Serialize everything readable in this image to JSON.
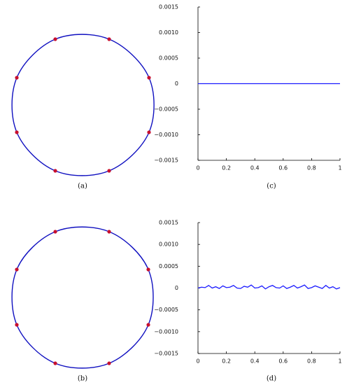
{
  "chart_data": [
    {
      "type": "curve",
      "caption": "(a)",
      "x": [
        0.38,
        0.95,
        0.95,
        0.38,
        -0.39,
        -0.94,
        -0.94,
        -0.39
      ],
      "y": [
        0.94,
        0.39,
        -0.39,
        -0.94,
        -0.94,
        -0.39,
        0.39,
        0.94
      ],
      "line_color": "#1010c0",
      "point_color": "#c8102e"
    },
    {
      "type": "curve",
      "caption": "(b)",
      "x": [
        0.38,
        0.94,
        0.94,
        0.38,
        -0.39,
        -0.94,
        -0.94,
        -0.39
      ],
      "y": [
        0.94,
        0.4,
        -0.39,
        -0.94,
        -0.94,
        -0.39,
        0.4,
        0.94
      ],
      "line_color": "#1010c0",
      "point_color": "#c8102e"
    },
    {
      "type": "line",
      "caption": "(c)",
      "x": [
        0,
        0.025,
        0.05,
        0.075,
        0.1,
        0.125,
        0.15,
        0.175,
        0.2,
        0.225,
        0.25,
        0.275,
        0.3,
        0.325,
        0.35,
        0.375,
        0.4,
        0.425,
        0.45,
        0.475,
        0.5,
        0.525,
        0.55,
        0.575,
        0.6,
        0.625,
        0.65,
        0.675,
        0.7,
        0.725,
        0.75,
        0.775,
        0.8,
        0.825,
        0.85,
        0.875,
        0.9,
        0.925,
        0.95,
        0.975,
        1
      ],
      "values": [
        0,
        0,
        0,
        0,
        0,
        0,
        0,
        0,
        0,
        0,
        0,
        0,
        0,
        0,
        0,
        0,
        0,
        0,
        0,
        0,
        0,
        0,
        0,
        0,
        0,
        0,
        0,
        0,
        0,
        0,
        0,
        0,
        0,
        0,
        0,
        0,
        0,
        0,
        0,
        0,
        0
      ],
      "color": "#1a1aff",
      "xlim": [
        0,
        1
      ],
      "xticks": [
        0,
        0.2,
        0.4,
        0.6,
        0.8,
        1
      ],
      "ylim": [
        -0.0015,
        0.0015
      ],
      "yticks": [
        {
          "value": -0.0015,
          "label": "−0.0015"
        },
        {
          "value": -0.001,
          "label": "−0.0010"
        },
        {
          "value": -0.0005,
          "label": "−0.0005"
        },
        0,
        0.0005,
        {
          "value": 0.001,
          "label": "0.0010"
        },
        0.0015
      ]
    },
    {
      "type": "line",
      "caption": "(d)",
      "x": [
        0,
        0.025,
        0.05,
        0.075,
        0.1,
        0.125,
        0.15,
        0.175,
        0.2,
        0.225,
        0.25,
        0.275,
        0.3,
        0.325,
        0.35,
        0.375,
        0.4,
        0.425,
        0.45,
        0.475,
        0.5,
        0.525,
        0.55,
        0.575,
        0.6,
        0.625,
        0.65,
        0.675,
        0.7,
        0.725,
        0.75,
        0.775,
        0.8,
        0.825,
        0.85,
        0.875,
        0.9,
        0.925,
        0.95,
        0.975,
        1
      ],
      "values": [
        0,
        2e-05,
        1e-05,
        6e-05,
        0,
        3e-05,
        -1e-05,
        5e-05,
        1e-05,
        2e-05,
        6e-05,
        0,
        -1e-05,
        4e-05,
        2e-05,
        7e-05,
        0,
        1e-05,
        5e-05,
        -2e-05,
        3e-05,
        6e-05,
        1e-05,
        0,
        5e-05,
        -1e-05,
        2e-05,
        6e-05,
        0,
        3e-05,
        7e-05,
        -1e-05,
        1e-05,
        5e-05,
        2e-05,
        -1e-05,
        6e-05,
        0,
        3e-05,
        -2e-05,
        1e-05
      ],
      "color": "#1a1aff",
      "xlim": [
        0,
        1
      ],
      "xticks": [
        0,
        0.2,
        0.4,
        0.6,
        0.8,
        1
      ],
      "ylim": [
        -0.0015,
        0.0015
      ],
      "yticks": [
        {
          "value": -0.0015,
          "label": "−0.0015"
        },
        {
          "value": -0.001,
          "label": "−0.0010"
        },
        {
          "value": -0.0005,
          "label": "−0.0005"
        },
        0,
        0.0005,
        {
          "value": 0.001,
          "label": "0.0010"
        },
        0.0015
      ]
    }
  ]
}
